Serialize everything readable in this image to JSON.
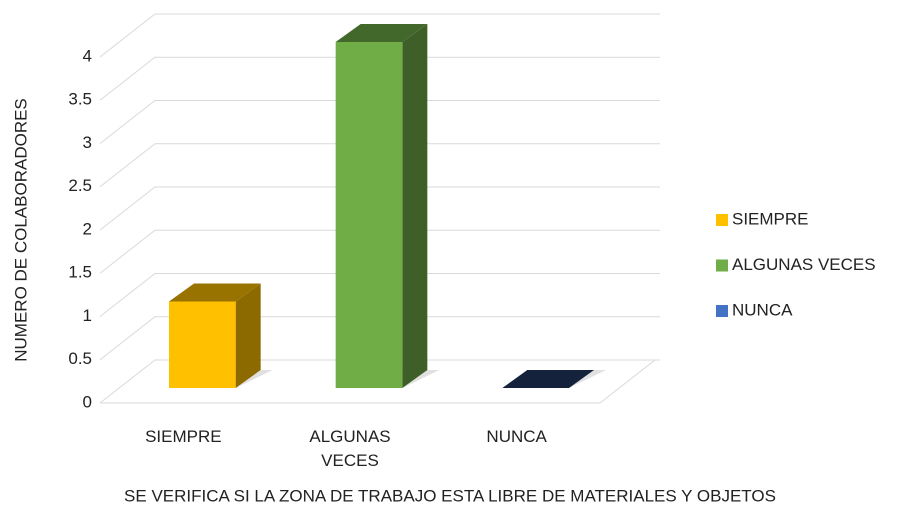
{
  "chart_data": {
    "type": "bar3d",
    "x_label": "SE VERIFICA SI LA ZONA DE TRABAJO ESTA LIBRE DE MATERIALES Y OBJETOS",
    "y_label": "NUMERO DE COLABORADORES",
    "categories": [
      "SIEMPRE",
      "ALGUNAS VECES",
      "NUNCA"
    ],
    "values": [
      1,
      4,
      0
    ],
    "colors": [
      "#ffc000",
      "#70ad47",
      "#4472c4"
    ],
    "ylim": [
      0,
      4
    ],
    "yticks": [
      0,
      0.5,
      1,
      1.5,
      2,
      2.5,
      3,
      3.5,
      4
    ],
    "grid": true,
    "legend": "right"
  }
}
